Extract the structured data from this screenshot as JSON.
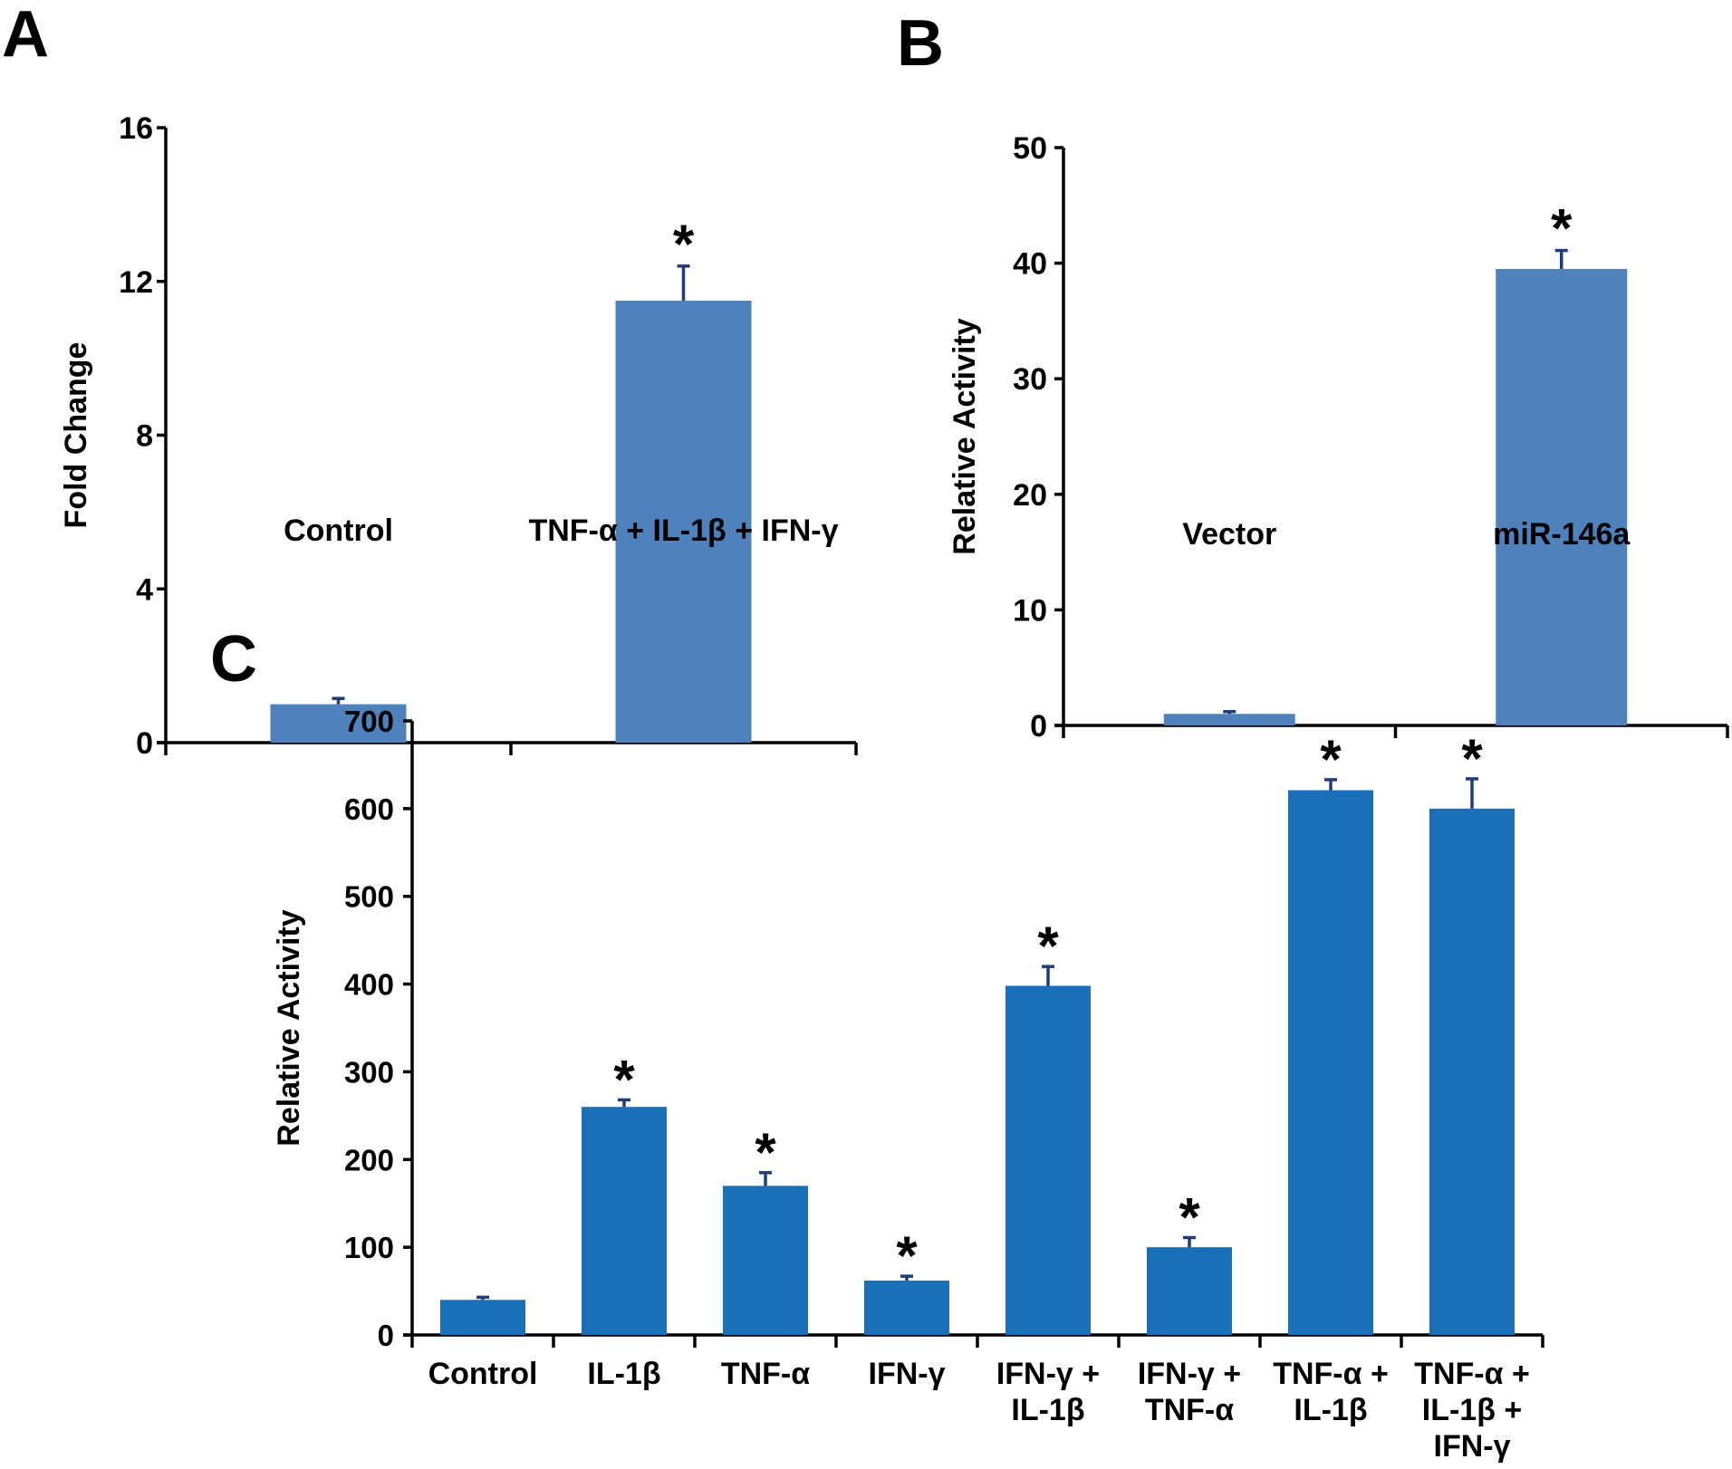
{
  "figure": {
    "colors": {
      "bar_ab": "#4F81BD",
      "bar_c": "#1B6FB8",
      "error_bar": "#1F3D7A",
      "axis": "#000000"
    }
  },
  "chart_data": [
    {
      "panel": "A",
      "type": "bar",
      "title": "",
      "xlabel": "",
      "ylabel": "Fold Change",
      "ylim": [
        0,
        16
      ],
      "yticks": [
        0,
        4,
        8,
        12,
        16
      ],
      "categories": [
        "Control",
        "TNF-α + IL-1β + IFN-γ"
      ],
      "values": [
        1.0,
        11.5
      ],
      "error_upper": [
        0.15,
        0.9
      ],
      "significance": [
        "",
        "*"
      ],
      "grid": false,
      "legend": "none"
    },
    {
      "panel": "B",
      "type": "bar",
      "title": "",
      "xlabel": "",
      "ylabel": "Relative Activity",
      "ylim": [
        0,
        50
      ],
      "yticks": [
        0,
        10,
        20,
        30,
        40,
        50
      ],
      "categories": [
        "Vector",
        "miR-146a"
      ],
      "values": [
        1.0,
        39.5
      ],
      "error_upper": [
        0.2,
        1.6
      ],
      "significance": [
        "",
        "*"
      ],
      "grid": false,
      "legend": "none"
    },
    {
      "panel": "C",
      "type": "bar",
      "title": "",
      "xlabel": "",
      "ylabel": "Relative Activity",
      "ylim": [
        0,
        700
      ],
      "yticks": [
        0,
        100,
        200,
        300,
        400,
        500,
        600,
        700
      ],
      "categories": [
        [
          "Control"
        ],
        [
          "IL-1β"
        ],
        [
          "TNF-α"
        ],
        [
          "IFN-γ"
        ],
        [
          "IFN-γ +",
          "IL-1β"
        ],
        [
          "IFN-γ +",
          "TNF-α"
        ],
        [
          "TNF-α +",
          "IL-1β"
        ],
        [
          "TNF-α +",
          "IL-1β +",
          "IFN-γ"
        ]
      ],
      "values": [
        40,
        260,
        170,
        62,
        398,
        100,
        621,
        600
      ],
      "error_upper": [
        3,
        8,
        15,
        5,
        22,
        11,
        12,
        34
      ],
      "significance": [
        "",
        "*",
        "*",
        "*",
        "*",
        "*",
        "*",
        "*"
      ],
      "grid": false,
      "legend": "none"
    }
  ]
}
